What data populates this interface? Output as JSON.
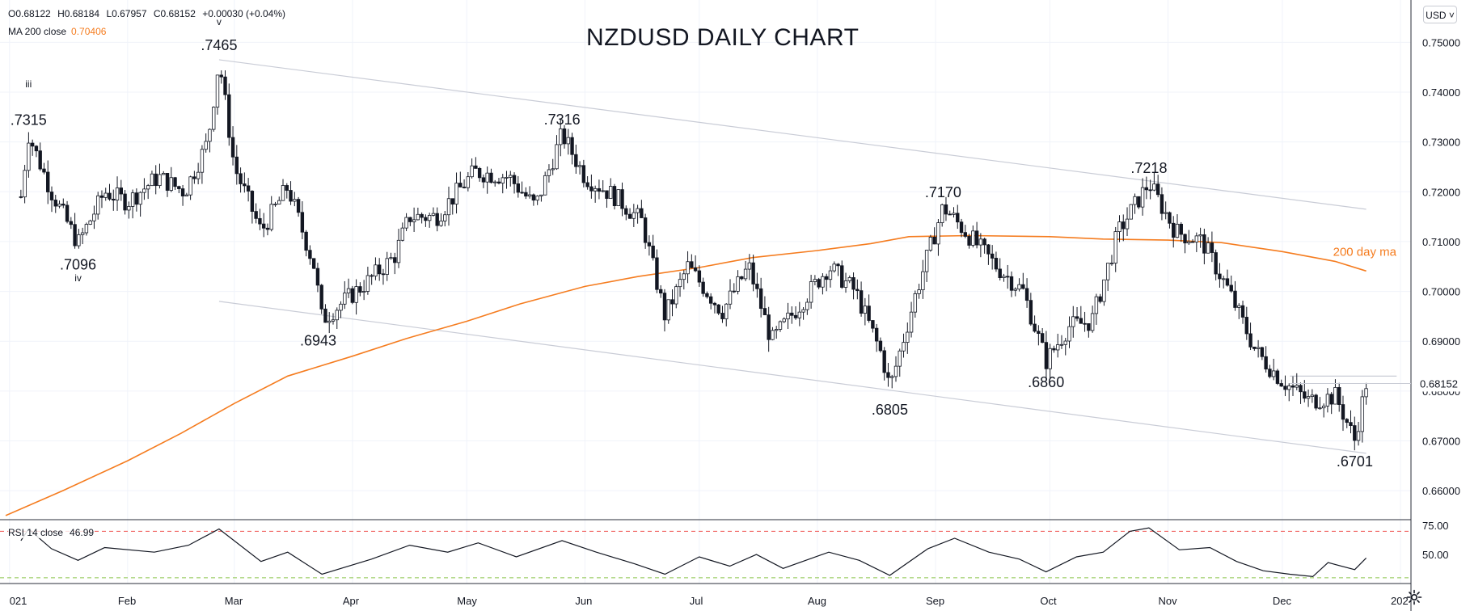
{
  "legend": {
    "ohlc": [
      "O0.68122",
      "H0.68184",
      "L0.67957",
      "C0.68152",
      "+0.00030 (+0.04%)"
    ],
    "ma_label": "MA 200 close",
    "ma_value": "0.70406",
    "rsi_label": "RSI 14 close",
    "rsi_value": "46.99"
  },
  "title": "NZDUSD DAILY CHART",
  "currency_button": "USD",
  "colors": {
    "ma": "#f57c1f",
    "candle_down": "#131722",
    "candle_up": "#ffffff",
    "trend": "#c9ccd6",
    "rsi_upper": "#ef5350",
    "rsi_lower": "#8bc34a"
  },
  "chart_data": {
    "type": "candlestick",
    "instrument": "NZDUSD",
    "timeframe": "daily",
    "ylim": [
      0.6545,
      0.7585
    ],
    "y_ticks": [
      "0.75000",
      "0.74000",
      "0.73000",
      "0.72000",
      "0.71000",
      "0.70000",
      "0.69000",
      "0.68000",
      "0.67000",
      "0.66000"
    ],
    "last_price_label": "0.68152",
    "x_ticks": [
      "021",
      "Feb",
      "Mar",
      "Apr",
      "May",
      "Jun",
      "Jul",
      "Aug",
      "Sep",
      "Oct",
      "Nov",
      "Dec",
      "202"
    ],
    "pivots": [
      {
        "date": "2021-01-06",
        "price": 0.7315,
        "label": ".7315"
      },
      {
        "date": "2021-01-19",
        "price": 0.7096,
        "label": ".7096"
      },
      {
        "date": "2021-02-25",
        "price": 0.7465,
        "label": ".7465"
      },
      {
        "date": "2021-03-23",
        "price": 0.6943,
        "label": ".6943"
      },
      {
        "date": "2021-05-26",
        "price": 0.7316,
        "label": ".7316"
      },
      {
        "date": "2021-08-20",
        "price": 0.6805,
        "label": ".6805"
      },
      {
        "date": "2021-09-03",
        "price": 0.717,
        "label": ".7170"
      },
      {
        "date": "2021-09-30",
        "price": 0.686,
        "label": ".6860"
      },
      {
        "date": "2021-10-27",
        "price": 0.7218,
        "label": ".7218"
      },
      {
        "date": "2021-12-20",
        "price": 0.6701,
        "label": ".6701"
      }
    ],
    "wave_labels": [
      {
        "date": "2021-01-06",
        "price": 0.741,
        "label": "iii"
      },
      {
        "date": "2021-01-19",
        "price": 0.702,
        "label": "iv"
      },
      {
        "date": "2021-02-25",
        "price": 0.7535,
        "label": "v"
      }
    ],
    "trendlines": [
      {
        "from": {
          "date": "2021-02-25",
          "price": 0.7465
        },
        "to": {
          "date": "2021-12-23",
          "price": 0.7165
        }
      },
      {
        "from": {
          "date": "2021-02-25",
          "price": 0.698
        },
        "to": {
          "date": "2021-12-23",
          "price": 0.6675
        }
      },
      {
        "from": {
          "date": "2021-12-03",
          "price": 0.683
        },
        "to": {
          "date": "2021-12-31",
          "price": 0.683
        }
      }
    ],
    "ma200": {
      "label": "200 day ma",
      "points": [
        [
          "2020-12-31",
          0.655
        ],
        [
          "2021-01-15",
          0.66
        ],
        [
          "2021-02-01",
          0.666
        ],
        [
          "2021-02-15",
          0.6715
        ],
        [
          "2021-03-01",
          0.6775
        ],
        [
          "2021-03-15",
          0.683
        ],
        [
          "2021-04-01",
          0.687
        ],
        [
          "2021-04-15",
          0.6905
        ],
        [
          "2021-05-01",
          0.694
        ],
        [
          "2021-05-15",
          0.6975
        ],
        [
          "2021-06-01",
          0.701
        ],
        [
          "2021-06-15",
          0.703
        ],
        [
          "2021-07-01",
          0.7048
        ],
        [
          "2021-07-15",
          0.7068
        ],
        [
          "2021-08-01",
          0.7082
        ],
        [
          "2021-08-15",
          0.7096
        ],
        [
          "2021-08-25",
          0.711
        ],
        [
          "2021-09-10",
          0.7112
        ],
        [
          "2021-10-01",
          0.711
        ],
        [
          "2021-10-15",
          0.7105
        ],
        [
          "2021-11-01",
          0.7103
        ],
        [
          "2021-11-15",
          0.7098
        ],
        [
          "2021-12-01",
          0.708
        ],
        [
          "2021-12-15",
          0.706
        ],
        [
          "2021-12-23",
          0.7041
        ]
      ]
    },
    "price_path": [
      [
        "2021-01-04",
        0.719
      ],
      [
        "2021-01-06",
        0.7315
      ],
      [
        "2021-01-12",
        0.72
      ],
      [
        "2021-01-19",
        0.7096
      ],
      [
        "2021-01-26",
        0.72
      ],
      [
        "2021-02-01",
        0.718
      ],
      [
        "2021-02-09",
        0.723
      ],
      [
        "2021-02-16",
        0.72
      ],
      [
        "2021-02-22",
        0.73
      ],
      [
        "2021-02-25",
        0.7465
      ],
      [
        "2021-03-01",
        0.725
      ],
      [
        "2021-03-08",
        0.712
      ],
      [
        "2021-03-15",
        0.721
      ],
      [
        "2021-03-22",
        0.705
      ],
      [
        "2021-03-24",
        0.6943
      ],
      [
        "2021-04-05",
        0.702
      ],
      [
        "2021-04-12",
        0.707
      ],
      [
        "2021-04-16",
        0.715
      ],
      [
        "2021-04-23",
        0.715
      ],
      [
        "2021-05-03",
        0.724
      ],
      [
        "2021-05-12",
        0.723
      ],
      [
        "2021-05-19",
        0.717
      ],
      [
        "2021-05-26",
        0.7316
      ],
      [
        "2021-06-01",
        0.723
      ],
      [
        "2021-06-09",
        0.719
      ],
      [
        "2021-06-16",
        0.714
      ],
      [
        "2021-06-22",
        0.695
      ],
      [
        "2021-06-28",
        0.705
      ],
      [
        "2021-07-07",
        0.696
      ],
      [
        "2021-07-14",
        0.705
      ],
      [
        "2021-07-20",
        0.69
      ],
      [
        "2021-07-28",
        0.698
      ],
      [
        "2021-08-04",
        0.705
      ],
      [
        "2021-08-11",
        0.7
      ],
      [
        "2021-08-18",
        0.687
      ],
      [
        "2021-08-20",
        0.6805
      ],
      [
        "2021-08-27",
        0.7
      ],
      [
        "2021-09-03",
        0.717
      ],
      [
        "2021-09-10",
        0.711
      ],
      [
        "2021-09-17",
        0.705
      ],
      [
        "2021-09-24",
        0.7
      ],
      [
        "2021-09-30",
        0.686
      ],
      [
        "2021-10-06",
        0.693
      ],
      [
        "2021-10-12",
        0.694
      ],
      [
        "2021-10-19",
        0.712
      ],
      [
        "2021-10-27",
        0.7218
      ],
      [
        "2021-11-03",
        0.712
      ],
      [
        "2021-11-10",
        0.71
      ],
      [
        "2021-11-17",
        0.7
      ],
      [
        "2021-11-24",
        0.688
      ],
      [
        "2021-12-01",
        0.682
      ],
      [
        "2021-12-08",
        0.678
      ],
      [
        "2021-12-15",
        0.679
      ],
      [
        "2021-12-20",
        0.6701
      ],
      [
        "2021-12-23",
        0.6815
      ]
    ],
    "rsi": {
      "label": "RSI 14",
      "levels": [
        "75.00",
        "50.00"
      ],
      "upper_band": 70,
      "lower_band": 30,
      "ylim": [
        25,
        80
      ],
      "points": [
        [
          "2021-01-04",
          62
        ],
        [
          "2021-01-06",
          72
        ],
        [
          "2021-01-12",
          55
        ],
        [
          "2021-01-19",
          45
        ],
        [
          "2021-01-26",
          56
        ],
        [
          "2021-02-08",
          52
        ],
        [
          "2021-02-17",
          58
        ],
        [
          "2021-02-25",
          72
        ],
        [
          "2021-03-08",
          44
        ],
        [
          "2021-03-15",
          52
        ],
        [
          "2021-03-24",
          33
        ],
        [
          "2021-04-06",
          46
        ],
        [
          "2021-04-16",
          58
        ],
        [
          "2021-04-26",
          52
        ],
        [
          "2021-05-04",
          60
        ],
        [
          "2021-05-14",
          48
        ],
        [
          "2021-05-26",
          62
        ],
        [
          "2021-06-04",
          52
        ],
        [
          "2021-06-14",
          42
        ],
        [
          "2021-06-22",
          33
        ],
        [
          "2021-07-01",
          48
        ],
        [
          "2021-07-09",
          40
        ],
        [
          "2021-07-16",
          50
        ],
        [
          "2021-07-23",
          38
        ],
        [
          "2021-08-04",
          52
        ],
        [
          "2021-08-12",
          45
        ],
        [
          "2021-08-20",
          32
        ],
        [
          "2021-08-30",
          55
        ],
        [
          "2021-09-06",
          64
        ],
        [
          "2021-09-15",
          52
        ],
        [
          "2021-09-23",
          46
        ],
        [
          "2021-09-30",
          35
        ],
        [
          "2021-10-08",
          48
        ],
        [
          "2021-10-15",
          52
        ],
        [
          "2021-10-22",
          70
        ],
        [
          "2021-10-27",
          73
        ],
        [
          "2021-11-04",
          54
        ],
        [
          "2021-11-12",
          56
        ],
        [
          "2021-11-19",
          44
        ],
        [
          "2021-11-26",
          36
        ],
        [
          "2021-12-03",
          33
        ],
        [
          "2021-12-09",
          31
        ],
        [
          "2021-12-13",
          43
        ],
        [
          "2021-12-20",
          37
        ],
        [
          "2021-12-23",
          47
        ]
      ]
    }
  }
}
